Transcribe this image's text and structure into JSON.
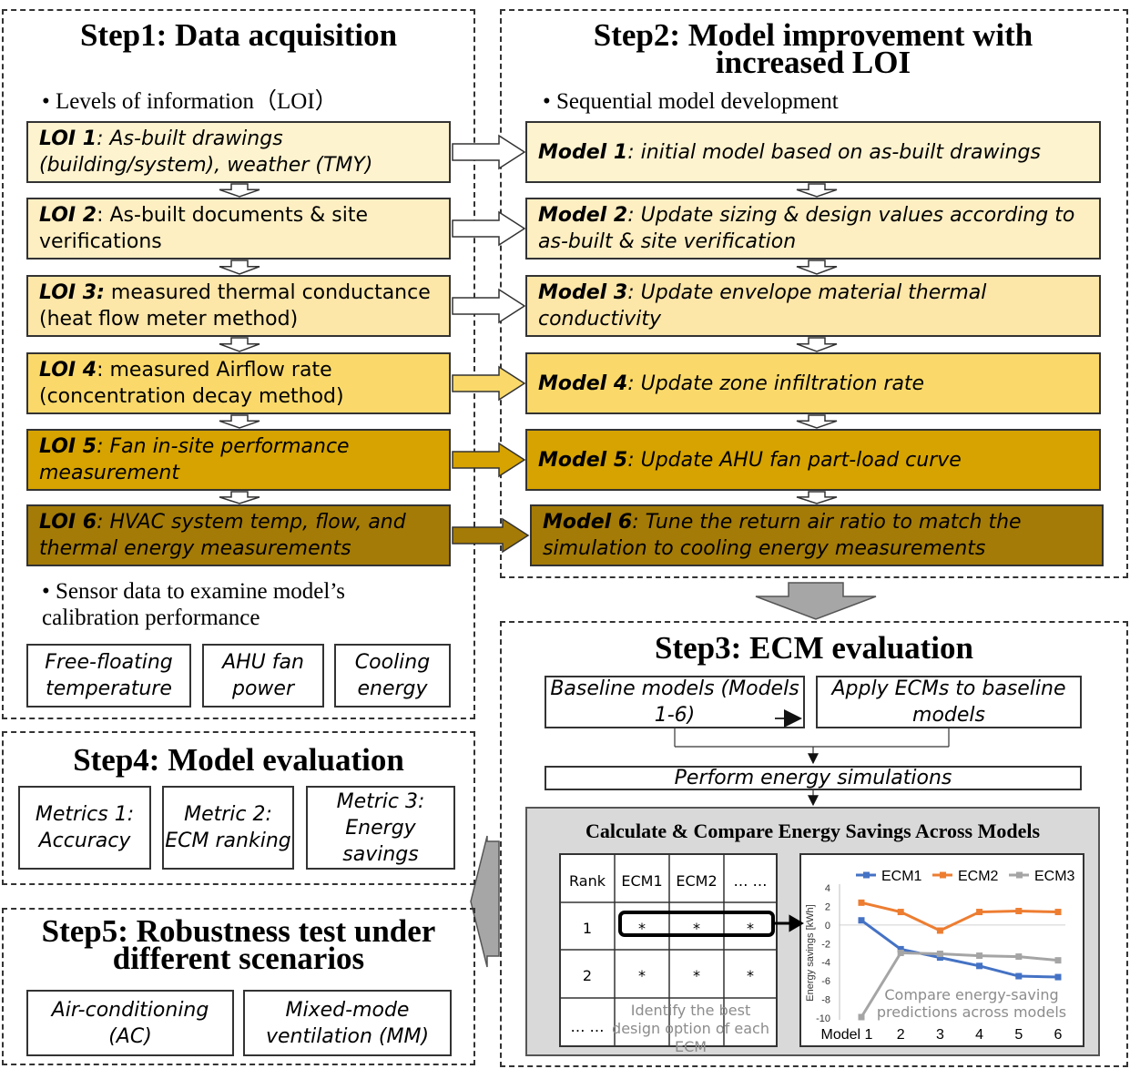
{
  "colors": {
    "loi1": "#FEF3CF",
    "loi2": "#FDEFC2",
    "loi3": "#FCE6A8",
    "loi4": "#FAD96A",
    "loi5": "#D6A300",
    "loi6": "#A47B06",
    "ecm1": "#4472C4",
    "ecm2": "#ED7D31",
    "ecm3": "#A5A5A5",
    "gray_panel": "#D9D9D9"
  },
  "step1": {
    "title": "Step1: Data acquisition",
    "bullet1": "• Levels of information（LOI）",
    "loi": [
      {
        "key": "LOI 1",
        "text": ": As-built drawings (building/system), weather (TMY)"
      },
      {
        "key": "LOI 2",
        "text": ": As-built documents & site verifications"
      },
      {
        "key": "LOI 3:",
        "text": " measured thermal conductance (heat flow meter method)"
      },
      {
        "key": "LOI 4",
        "text": ": measured Airflow rate (concentration decay method)"
      },
      {
        "key": "LOI 5",
        "text": ": Fan in-site performance measurement"
      },
      {
        "key": "LOI 6",
        "text": ": HVAC system temp, flow, and thermal energy measurements"
      }
    ],
    "bullet2": "• Sensor data to examine model’s calibration performance",
    "sensors": [
      "Free-floating temperature",
      "AHU fan power",
      "Cooling energy"
    ]
  },
  "step2": {
    "title": "Step2: Model improvement with increased LOI",
    "bullet": "• Sequential model development",
    "models": [
      {
        "key": "Model 1",
        "text": ": initial model based on as-built drawings"
      },
      {
        "key": "Model 2",
        "text": ": Update sizing & design values according to as-built & site verification"
      },
      {
        "key": "Model 3",
        "text": ": Update envelope material thermal conductivity"
      },
      {
        "key": "Model 4",
        "text": ": Update zone infiltration rate"
      },
      {
        "key": "Model 5",
        "text": ": Update AHU fan part-load curve"
      },
      {
        "key": "Model 6",
        "text": ": Tune the return air ratio to match the simulation to cooling energy measurements"
      }
    ]
  },
  "step3": {
    "title": "Step3: ECM evaluation",
    "baseline": "Baseline models (Models 1-6)",
    "apply": "Apply ECMs to baseline models",
    "perform": "Perform energy simulations",
    "calc_title": "Calculate & Compare Energy Savings Across Models",
    "table": {
      "headers": [
        "Rank",
        "ECM1",
        "ECM2",
        "… …"
      ],
      "rows": [
        [
          "1",
          "*",
          "*",
          "*"
        ],
        [
          "2",
          "*",
          "*",
          "*"
        ],
        [
          "… …",
          "",
          "",
          ""
        ]
      ],
      "overlay": "Identify the best design option of each ECM"
    },
    "chart_overlay": "Compare energy-saving predictions across models"
  },
  "step4": {
    "title": "Step4: Model evaluation",
    "metrics": [
      "Metrics 1: Accuracy",
      "Metric 2: ECM ranking",
      "Metric 3: Energy savings"
    ]
  },
  "step5": {
    "title": "Step5: Robustness test under different scenarios",
    "scenarios": [
      "Air-conditioning (AC)",
      "Mixed-mode ventilation (MM)"
    ]
  },
  "chart_data": {
    "type": "line",
    "x": [
      "Model 1",
      "2",
      "3",
      "4",
      "5",
      "6"
    ],
    "ylabel": "Energy savings [kWh]",
    "ylim": [
      -10,
      4
    ],
    "yticks": [
      4,
      2,
      0,
      -2,
      -4,
      -6,
      -8,
      -10
    ],
    "legend": "top",
    "grid": false,
    "series": [
      {
        "name": "ECM1",
        "color": "#4472C4",
        "values": [
          0.5,
          -2.6,
          -3.5,
          -4.4,
          -5.5,
          -5.6
        ]
      },
      {
        "name": "ECM2",
        "color": "#ED7D31",
        "values": [
          2.4,
          1.4,
          -0.6,
          1.4,
          1.5,
          1.4
        ]
      },
      {
        "name": "ECM3",
        "color": "#A5A5A5",
        "values": [
          -9.9,
          -3.0,
          -3.1,
          -3.3,
          -3.4,
          -3.8
        ]
      }
    ]
  }
}
